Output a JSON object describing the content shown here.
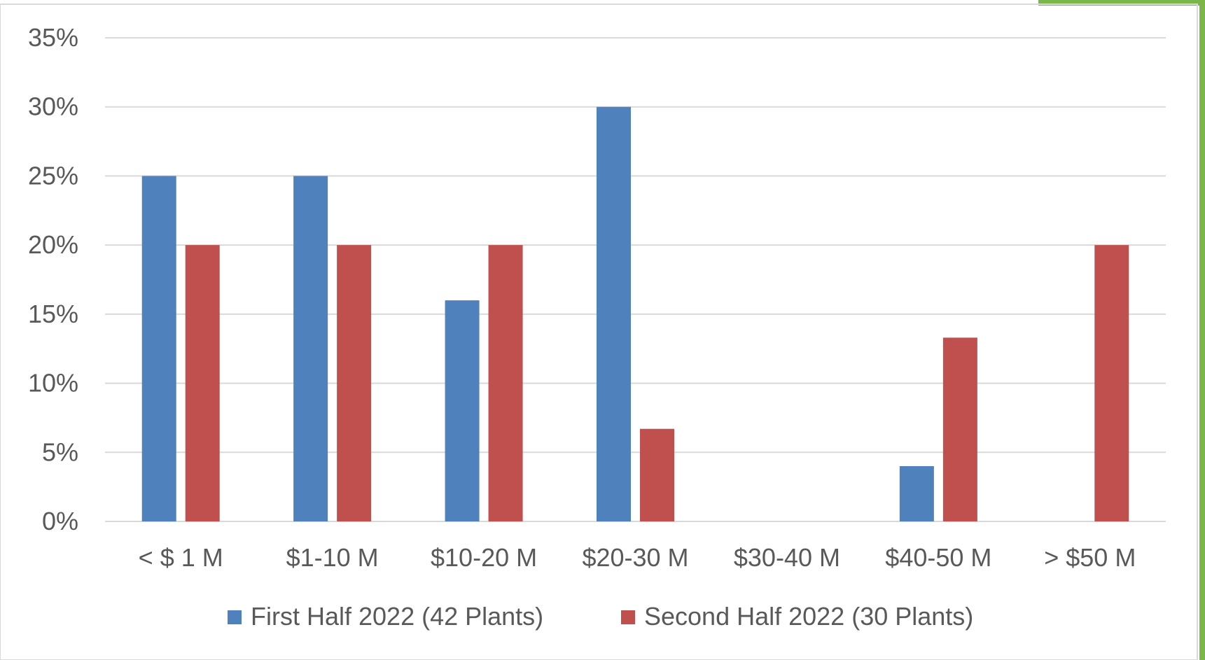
{
  "chart_data": {
    "type": "bar",
    "categories": [
      "< $ 1 M",
      "$1-10 M",
      "$10-20 M",
      "$20-30 M",
      "$30-40 M",
      "$40-50 M",
      "> $50 M"
    ],
    "series": [
      {
        "name": "First Half 2022 (42 Plants)",
        "values": [
          25,
          25,
          16,
          30,
          0,
          4,
          0
        ],
        "color": "#4F81BD"
      },
      {
        "name": "Second Half 2022 (30 Plants)",
        "values": [
          20,
          20,
          20,
          6.7,
          0,
          13.3,
          20
        ],
        "color": "#C0504D"
      }
    ],
    "y_ticks": [
      "0%",
      "5%",
      "10%",
      "15%",
      "20%",
      "25%",
      "30%",
      "35%"
    ],
    "ylim": [
      0,
      35
    ],
    "grid": true,
    "legend_position": "bottom",
    "title": "",
    "xlabel": "",
    "ylabel": ""
  },
  "colors": {
    "gridline": "#D9D9D9",
    "accent_green": "#7AB648",
    "frame_border": "#D9D9D9"
  }
}
